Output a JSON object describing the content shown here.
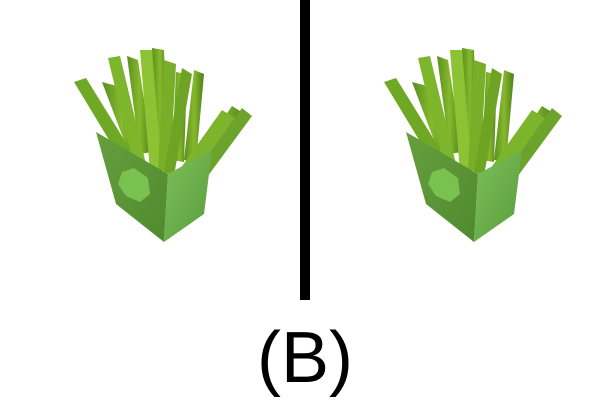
{
  "caption": "(B)",
  "colors": {
    "background": "#ffffff",
    "divider": "#000000",
    "fry_light": "#7fb32a",
    "fry_dark": "#4e7f1a",
    "box_front": "#5e9a38",
    "box_side": "#6fb04a",
    "box_emblem": "#76c34e"
  },
  "images": [
    {
      "name": "green-fries-box-image"
    },
    {
      "name": "green-fries-box-image"
    }
  ]
}
